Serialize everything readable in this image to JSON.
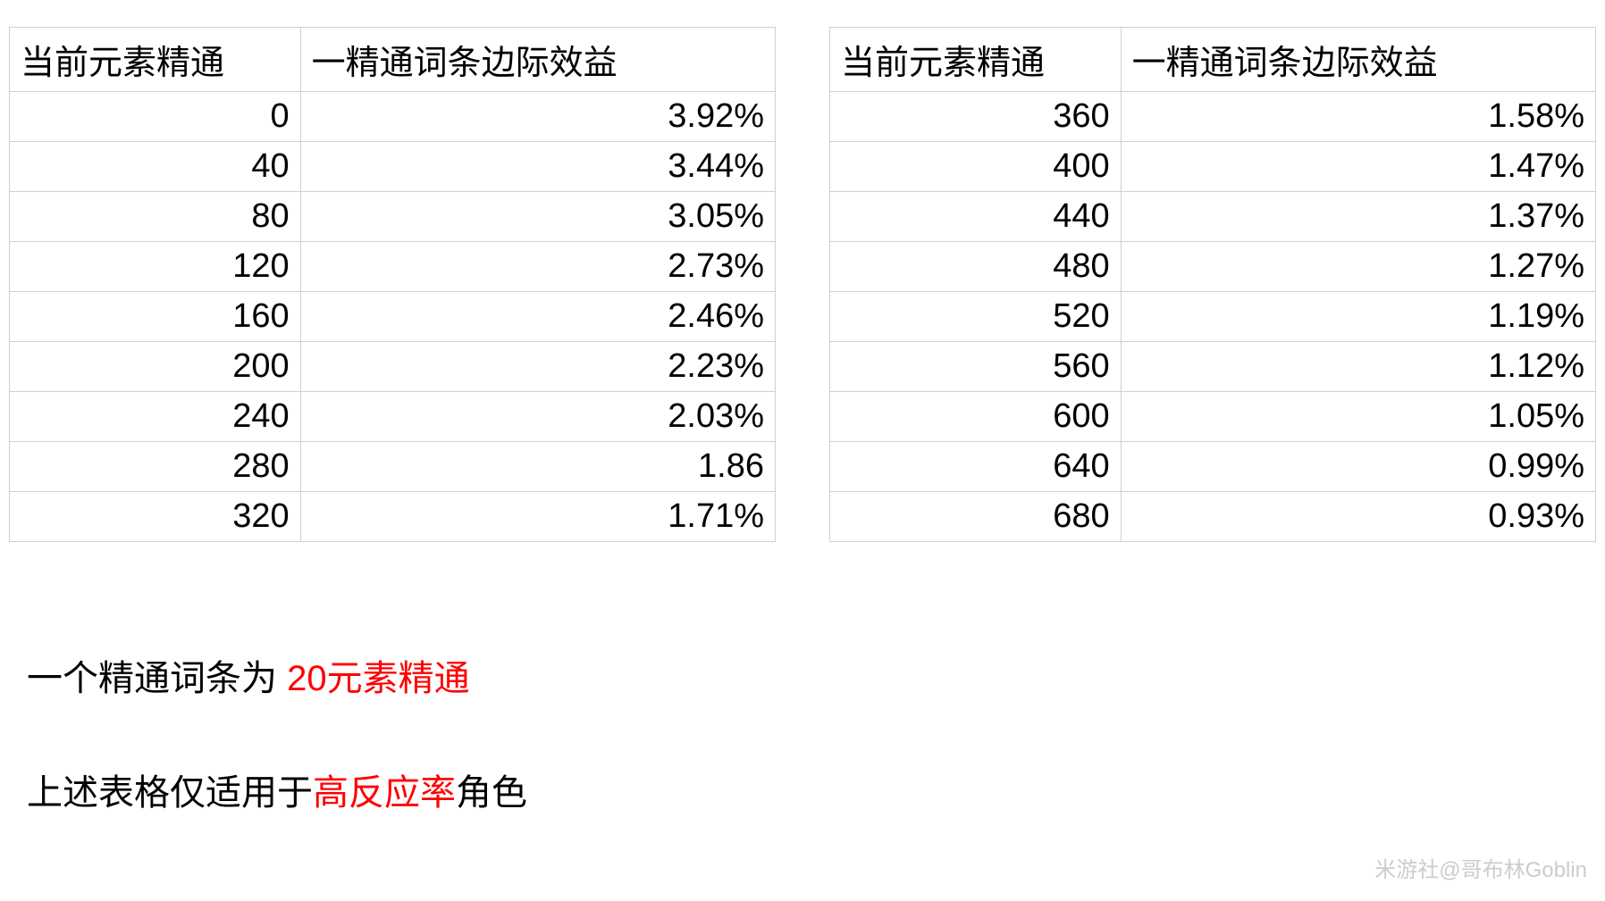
{
  "tables": {
    "left": {
      "columns": [
        "当前元素精通",
        "一精通词条边际效益"
      ],
      "rows": [
        [
          "0",
          "3.92%"
        ],
        [
          "40",
          "3.44%"
        ],
        [
          "80",
          "3.05%"
        ],
        [
          "120",
          "2.73%"
        ],
        [
          "160",
          "2.46%"
        ],
        [
          "200",
          "2.23%"
        ],
        [
          "240",
          "2.03%"
        ],
        [
          "280",
          "1.86"
        ],
        [
          "320",
          "1.71%"
        ]
      ],
      "column_widths": [
        "38%",
        "62%"
      ],
      "alignments": [
        "right",
        "right"
      ]
    },
    "right": {
      "columns": [
        "当前元素精通",
        "一精通词条边际效益"
      ],
      "rows": [
        [
          "360",
          "1.58%"
        ],
        [
          "400",
          "1.47%"
        ],
        [
          "440",
          "1.37%"
        ],
        [
          "480",
          "1.27%"
        ],
        [
          "520",
          "1.19%"
        ],
        [
          "560",
          "1.12%"
        ],
        [
          "600",
          "1.05%"
        ],
        [
          "640",
          "0.99%"
        ],
        [
          "680",
          "0.93%"
        ]
      ],
      "column_widths": [
        "38%",
        "62%"
      ],
      "alignments": [
        "right",
        "right"
      ]
    }
  },
  "notes": {
    "line1_prefix": "一个精通词条为  ",
    "line1_red": "20元素精通",
    "line2_prefix": "上述表格仅适用于",
    "line2_red": "高反应率",
    "line2_suffix": "角色"
  },
  "watermark": "米游社@哥布林Goblin",
  "styling": {
    "body_bg": "#ffffff",
    "text_color": "#000000",
    "red_color": "#ff0000",
    "border_color": "#d0d0d0",
    "watermark_color": "#cccccc",
    "header_fontsize": 38,
    "cell_fontsize": 38,
    "note_fontsize": 40,
    "watermark_fontsize": 24
  }
}
